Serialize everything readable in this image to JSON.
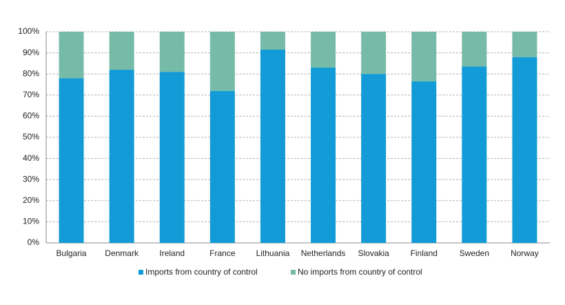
{
  "chart_data": {
    "type": "stacked_bar",
    "categories": [
      "Bulgaria",
      "Denmark",
      "Ireland",
      "France",
      "Lithuania",
      "Netherlands",
      "Slovakia",
      "Finland",
      "Sweden",
      "Norway"
    ],
    "series": [
      {
        "name": "Imports from country of control",
        "color": "#129bd7",
        "values": [
          78,
          82,
          81,
          72,
          91.5,
          83,
          80,
          76.5,
          83.5,
          88
        ]
      },
      {
        "name": "No imports from country of control",
        "color": "#76bba8",
        "values": [
          22,
          18,
          19,
          28,
          8.5,
          17,
          20,
          23.5,
          16.5,
          12
        ]
      }
    ],
    "ylim": [
      0,
      100
    ],
    "yticks": [
      {
        "value": 0,
        "label": "0%"
      },
      {
        "value": 10,
        "label": "10%"
      },
      {
        "value": 20,
        "label": "20%"
      },
      {
        "value": 30,
        "label": "30%"
      },
      {
        "value": 40,
        "label": "40%"
      },
      {
        "value": 50,
        "label": "50%"
      },
      {
        "value": 60,
        "label": "60%"
      },
      {
        "value": 70,
        "label": "70%"
      },
      {
        "value": 80,
        "label": "80%"
      },
      {
        "value": 90,
        "label": "90%"
      },
      {
        "value": 100,
        "label": "100%"
      }
    ],
    "grid": true,
    "legend": "bottom"
  }
}
